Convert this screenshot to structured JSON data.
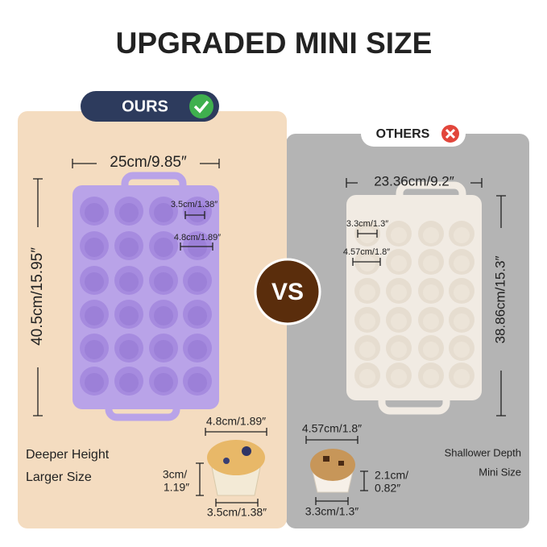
{
  "title": "UPGRADED MINI SIZE",
  "ours": {
    "badge": "OURS",
    "width": "25cm/9.85″",
    "height": "40.5cm/15.95″",
    "cup_diameters": [
      "3.5cm/1.38″",
      "4.8cm/1.89″"
    ],
    "features": [
      "Deeper Height",
      "Larger Size"
    ],
    "muffin": {
      "top": "4.8cm/1.89″",
      "height": [
        "3cm/",
        "1.19″"
      ],
      "bottom": "3.5cm/1.38″"
    }
  },
  "versus": "VS",
  "others": {
    "badge": "OTHERS",
    "width": "23.36cm/9.2″",
    "height": "38.86cm/15.3″",
    "cup_diameters": [
      "3.3cm/1.3″",
      "4.57cm/1.8″"
    ],
    "features": [
      "Shallower Depth",
      "Mini Size"
    ],
    "muffin": {
      "top": "4.57cm/1.8″",
      "height": [
        "2.1cm/",
        "0.82″"
      ],
      "bottom": "3.3cm/1.3″"
    }
  }
}
